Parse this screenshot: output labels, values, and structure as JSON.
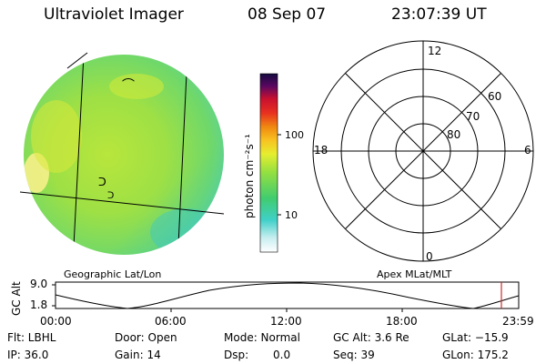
{
  "header": {
    "title": "Ultraviolet Imager",
    "date": "08 Sep 07",
    "time": "23:07:39 UT"
  },
  "colorbar": {
    "unit_label": "photon cm⁻²s⁻¹",
    "ticks": [
      "100",
      "10"
    ]
  },
  "earth_image": {
    "grid_label": "Geographic Lat/Lon",
    "overlay_marks": [
      "⌒",
      "ᑐ",
      "ᑐ"
    ]
  },
  "polar_plot": {
    "grid_label": "Apex MLat/MLT",
    "mlt_labels": [
      "12",
      "18",
      "6",
      "0"
    ],
    "lat_labels": [
      "60",
      "70",
      "80"
    ]
  },
  "altitude_plot": {
    "ylabel": "GC Alt",
    "y_ticks": [
      "9.0",
      "1.8"
    ],
    "x_ticks": [
      "00:00",
      "06:00",
      "12:00",
      "18:00",
      "23:59"
    ],
    "marker_color": "#cc2a2a"
  },
  "status": {
    "flt": "Flt: LBHL",
    "ip": "IP: 36.0",
    "door": "Door: Open",
    "gain": "Gain: 14",
    "mode": "Mode: Normal",
    "dsp_label": "Dsp:",
    "dsp_value": "0.0",
    "gc_alt": "GC Alt: 3.6 Re",
    "seq": "Seq: 39",
    "glat": "GLat: −15.9",
    "glon": "GLon: 175.2"
  }
}
